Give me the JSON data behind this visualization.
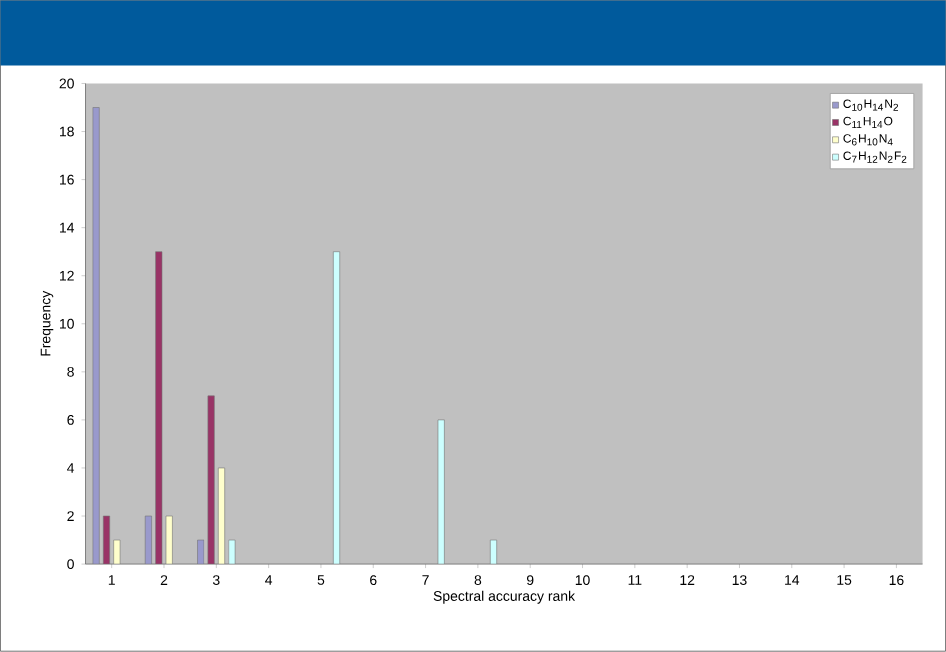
{
  "chart_data": {
    "type": "bar",
    "xlabel": "Spectral accuracy rank",
    "ylabel": "Frequency",
    "categories": [
      "1",
      "2",
      "3",
      "4",
      "5",
      "6",
      "7",
      "8",
      "9",
      "10",
      "11",
      "12",
      "13",
      "14",
      "15",
      "16"
    ],
    "series": [
      {
        "name": "C$_{10}$H$_{14}$N$_{2}$",
        "color": "#9999cc",
        "values": [
          19,
          2,
          1,
          0,
          0,
          0,
          0,
          0,
          0,
          0,
          0,
          0,
          0,
          0,
          0,
          0
        ]
      },
      {
        "name": "C$_{11}$H$_{14}$O",
        "color": "#993366",
        "values": [
          2,
          13,
          7,
          0,
          0,
          0,
          0,
          0,
          0,
          0,
          0,
          0,
          0,
          0,
          0,
          0
        ]
      },
      {
        "name": "C$_{6}$H$_{10}$N$_{4}$",
        "color": "#ffffcc",
        "values": [
          1,
          2,
          4,
          0,
          0,
          0,
          0,
          0,
          0,
          0,
          0,
          0,
          0,
          0,
          0,
          0
        ]
      },
      {
        "name": "C$_{7}$H$_{12}$N$_{2}$F$_{2}$",
        "color": "#ccffff",
        "values": [
          0,
          0,
          1,
          0,
          13,
          0,
          6,
          1,
          0,
          0,
          0,
          0,
          0,
          0,
          0,
          0
        ]
      }
    ],
    "ylim": [
      0,
      20
    ],
    "yticks": [
      0,
      2,
      4,
      6,
      8,
      10,
      12,
      14,
      16,
      18,
      20
    ],
    "legend": "top right",
    "grid": false
  }
}
